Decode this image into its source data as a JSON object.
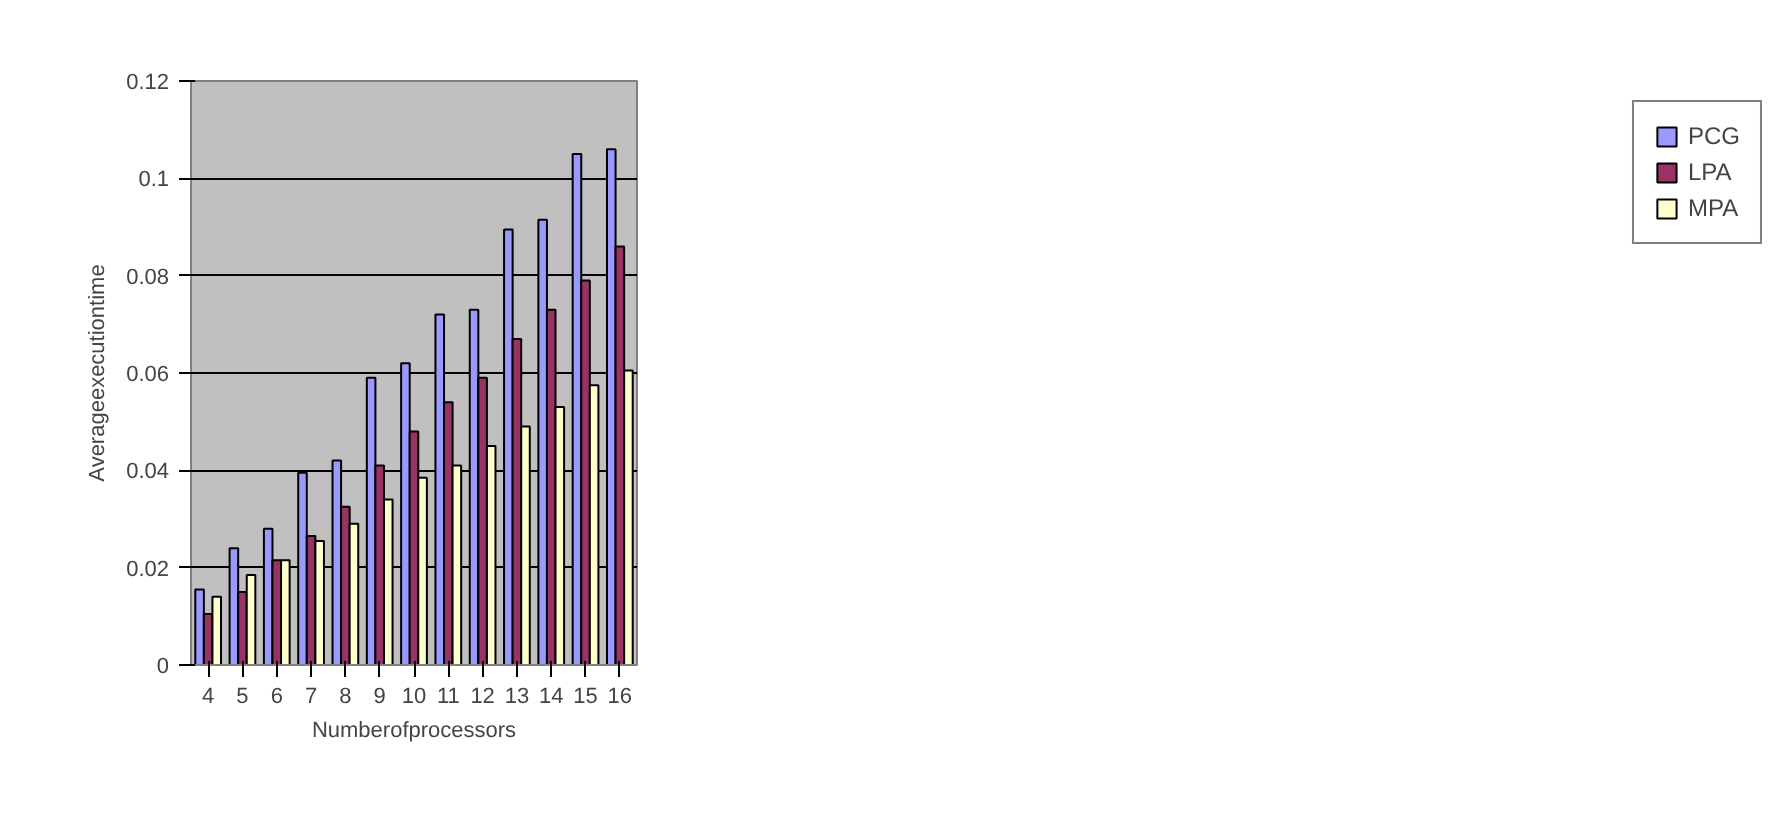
{
  "chart_data": {
    "type": "bar",
    "xlabel": "Numberofprocessors",
    "ylabel": "Averageexecutiontime",
    "categories": [
      "4",
      "5",
      "6",
      "7",
      "8",
      "9",
      "10",
      "11",
      "12",
      "13",
      "14",
      "15",
      "16"
    ],
    "series": [
      {
        "name": "PCG",
        "color": "#9999ff",
        "values": [
          0.0155,
          0.024,
          0.028,
          0.0395,
          0.042,
          0.059,
          0.062,
          0.072,
          0.073,
          0.0895,
          0.0915,
          0.105,
          0.106
        ]
      },
      {
        "name": "LPA",
        "color": "#993366",
        "values": [
          0.0105,
          0.015,
          0.0215,
          0.0265,
          0.0325,
          0.041,
          0.048,
          0.054,
          0.059,
          0.067,
          0.073,
          0.079,
          0.086
        ]
      },
      {
        "name": "MPA",
        "color": "#ffffcc",
        "values": [
          0.014,
          0.0185,
          0.0215,
          0.0255,
          0.029,
          0.034,
          0.0385,
          0.041,
          0.045,
          0.049,
          0.053,
          0.0575,
          0.0605
        ]
      }
    ],
    "ylim": [
      0,
      0.12
    ],
    "yticks": [
      0,
      0.02,
      0.04,
      0.06,
      0.08,
      0.1,
      0.12
    ],
    "grid": "y",
    "legend": "right"
  }
}
